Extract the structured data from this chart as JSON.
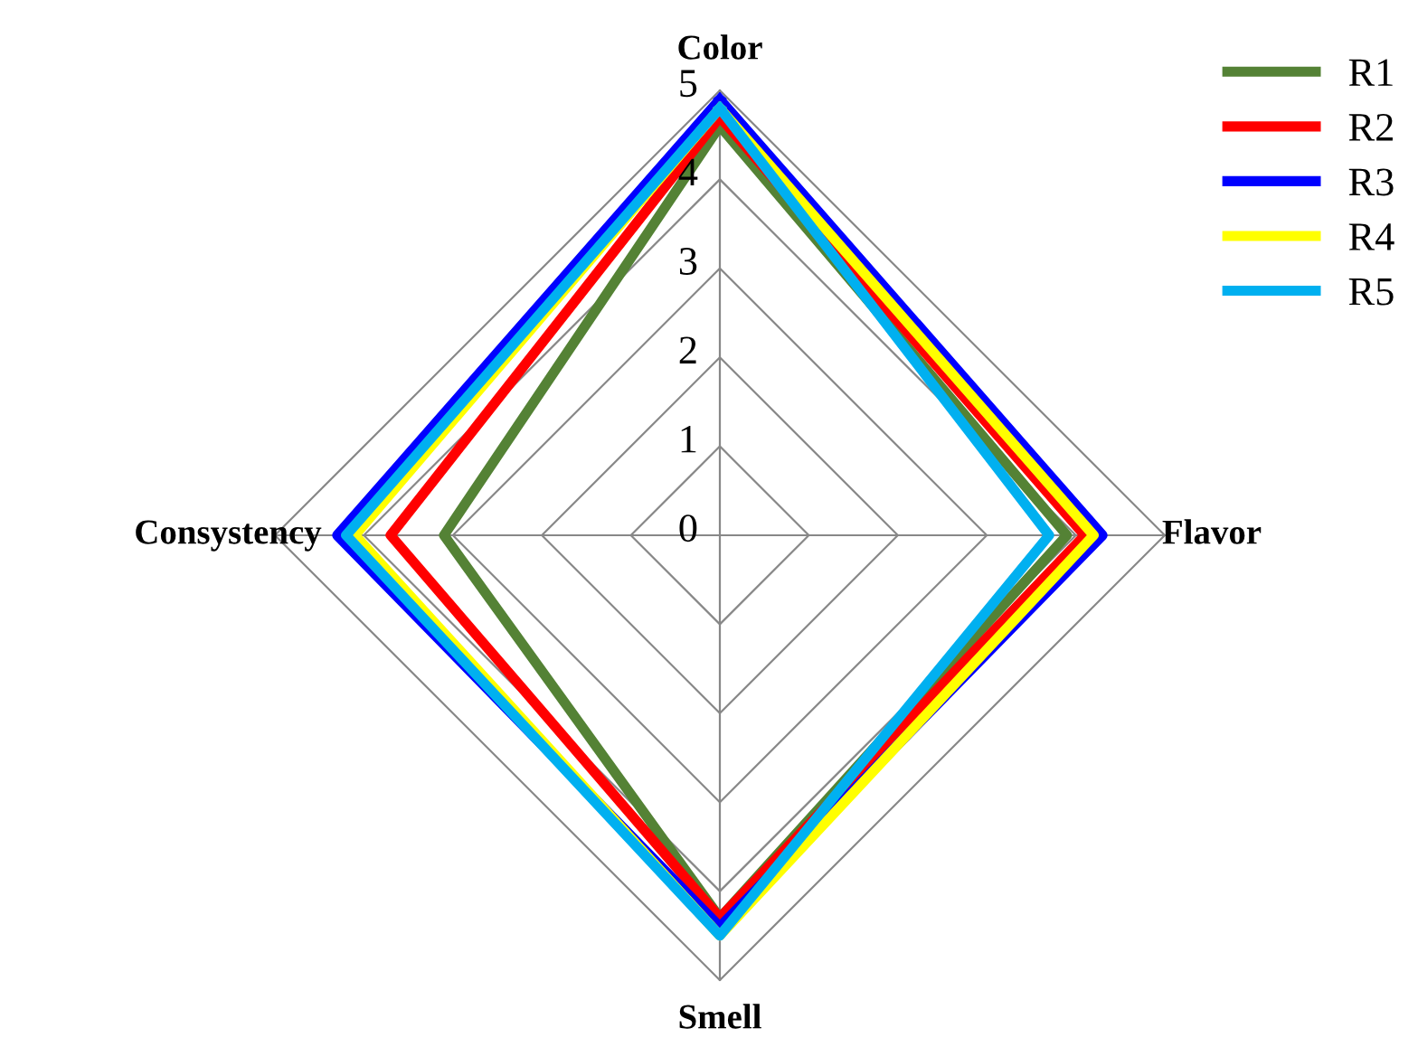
{
  "chart_data": {
    "type": "radar",
    "categories": [
      "Color",
      "Flavor",
      "Smell",
      "Consystency"
    ],
    "ylim": [
      0,
      5
    ],
    "yticks": [
      0,
      1,
      2,
      3,
      4,
      5
    ],
    "grid": true,
    "legend": "top right",
    "series": [
      {
        "name": "R1",
        "color": "#548235",
        "values": [
          4.6,
          3.9,
          4.3,
          3.1
        ]
      },
      {
        "name": "R2",
        "color": "#ff0000",
        "values": [
          4.7,
          4.1,
          4.3,
          3.7
        ]
      },
      {
        "name": "R3",
        "color": "#0000ff",
        "values": [
          4.9,
          4.3,
          4.4,
          4.3
        ]
      },
      {
        "name": "R4",
        "color": "#ffff00",
        "values": [
          4.8,
          4.2,
          4.5,
          4.1
        ]
      },
      {
        "name": "R5",
        "color": "#00b0f0",
        "values": [
          4.8,
          3.7,
          4.5,
          4.2
        ]
      }
    ]
  }
}
